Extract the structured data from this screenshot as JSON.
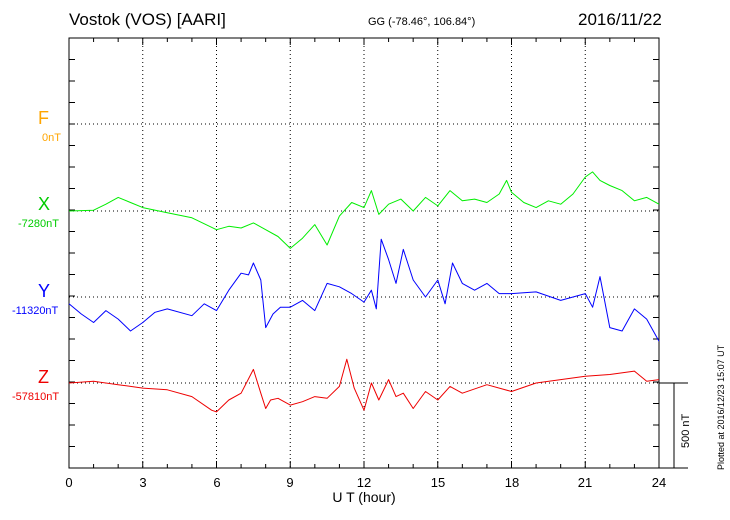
{
  "header": {
    "station": "Vostok (VOS)  [AARI]",
    "coords": "GG (-78.46°, 106.84°)",
    "date": "2016/11/22"
  },
  "footer": {
    "plotted": "Plotted at 2016/12/23 15:07 UT"
  },
  "chart_data": {
    "type": "line",
    "xlabel": "U T (hour)",
    "xlim": [
      0,
      24
    ],
    "x_ticks": [
      0,
      3,
      6,
      9,
      12,
      15,
      18,
      21,
      24
    ],
    "scale_bar": "500 nT",
    "series": [
      {
        "name": "F",
        "baseline": "0nT",
        "color": "#ffa500",
        "x": [],
        "y": []
      },
      {
        "name": "X",
        "baseline": "-7280nT",
        "color": "#00ee00",
        "x": [
          0,
          1,
          1.5,
          2,
          2.5,
          3,
          4,
          5,
          6,
          6.5,
          7,
          7.5,
          8,
          8.5,
          9,
          9.5,
          10,
          10.5,
          11,
          11.5,
          12,
          12.3,
          12.6,
          13,
          13.5,
          14,
          14.5,
          15,
          15.5,
          16,
          16.5,
          17,
          17.5,
          17.8,
          18,
          18.5,
          19,
          19.5,
          20,
          20.5,
          21,
          21.3,
          21.6,
          22,
          22.5,
          23,
          23.5,
          24
        ],
        "y": [
          0,
          5,
          40,
          80,
          50,
          20,
          -10,
          -40,
          -110,
          -90,
          -100,
          -70,
          -110,
          -150,
          -220,
          -160,
          -80,
          -200,
          -30,
          50,
          20,
          120,
          -20,
          40,
          70,
          0,
          80,
          30,
          120,
          60,
          70,
          50,
          100,
          180,
          110,
          50,
          20,
          60,
          40,
          100,
          200,
          230,
          180,
          150,
          120,
          60,
          80,
          40
        ]
      },
      {
        "name": "Y",
        "baseline": "-11320nT",
        "color": "#0000ff",
        "x": [
          0,
          0.5,
          1,
          1.5,
          2,
          2.5,
          3,
          3.5,
          4,
          5,
          5.5,
          6,
          6.5,
          7,
          7.3,
          7.5,
          7.8,
          8,
          8.3,
          8.6,
          9,
          9.5,
          10,
          10.5,
          11,
          11.5,
          12,
          12.3,
          12.5,
          12.7,
          13,
          13.3,
          13.6,
          14,
          14.5,
          15,
          15.3,
          15.6,
          16,
          16.5,
          17,
          17.5,
          18,
          19,
          20,
          21,
          21.3,
          21.6,
          22,
          22.5,
          23,
          23.5,
          24
        ],
        "y": [
          -40,
          -100,
          -150,
          -80,
          -130,
          -200,
          -150,
          -90,
          -70,
          -110,
          -40,
          -80,
          40,
          140,
          130,
          200,
          100,
          -180,
          -100,
          -60,
          -60,
          -20,
          -80,
          80,
          60,
          20,
          -30,
          40,
          -70,
          340,
          220,
          80,
          280,
          100,
          0,
          100,
          -40,
          200,
          80,
          40,
          80,
          20,
          20,
          30,
          -20,
          20,
          -60,
          120,
          -180,
          -200,
          -70,
          -130,
          -260
        ]
      },
      {
        "name": "Z",
        "baseline": "-57810nT",
        "color": "#ee0000",
        "x": [
          0,
          1,
          2,
          3,
          4,
          5,
          5.8,
          6,
          6.5,
          7,
          7.5,
          7.8,
          8,
          8.2,
          8.5,
          9,
          9.5,
          10,
          10.5,
          11,
          11.3,
          11.6,
          12,
          12.3,
          12.6,
          13,
          13.3,
          13.6,
          14,
          14.5,
          15,
          15.5,
          16,
          17,
          18,
          19,
          20,
          21,
          22,
          23,
          23.5,
          24
        ],
        "y": [
          0,
          10,
          -10,
          -30,
          -40,
          -80,
          -160,
          -170,
          -100,
          -60,
          80,
          -60,
          -150,
          -100,
          -90,
          -130,
          -110,
          -80,
          -90,
          -20,
          140,
          -30,
          -160,
          0,
          -100,
          20,
          -80,
          -60,
          -150,
          -50,
          -100,
          -20,
          -60,
          -10,
          -50,
          0,
          20,
          40,
          50,
          70,
          10,
          20
        ]
      }
    ]
  }
}
